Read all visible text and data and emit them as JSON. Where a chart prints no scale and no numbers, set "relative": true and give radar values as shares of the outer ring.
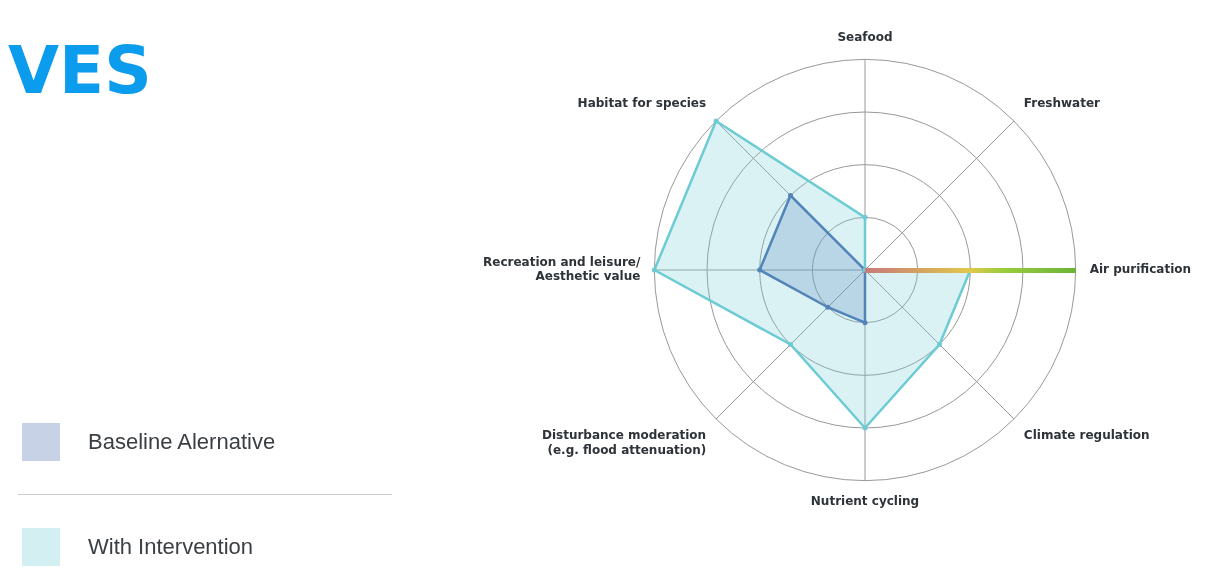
{
  "chart_data": {
    "type": "radar",
    "title": "VES",
    "relative": true,
    "legend": "left",
    "categories": [
      "Seafood",
      "Freshwater",
      "Air purification",
      "Climate regulation",
      "Nutrient cycling",
      "Disturbance moderation\n(e.g. flood attenuation)",
      "Recreation and leisure/\nAesthetic value",
      "Habitat for species"
    ],
    "series": [
      {
        "name": "Baseline Alernative",
        "color": "#4a6bb0",
        "values": [
          0,
          0,
          0,
          0,
          0.25,
          0.25,
          0.5,
          0.5
        ]
      },
      {
        "name": "With Intervention",
        "color": "#6ccbd3",
        "values": [
          0.25,
          0,
          0.5,
          0.5,
          0.75,
          0.5,
          1,
          1
        ]
      }
    ]
  }
}
